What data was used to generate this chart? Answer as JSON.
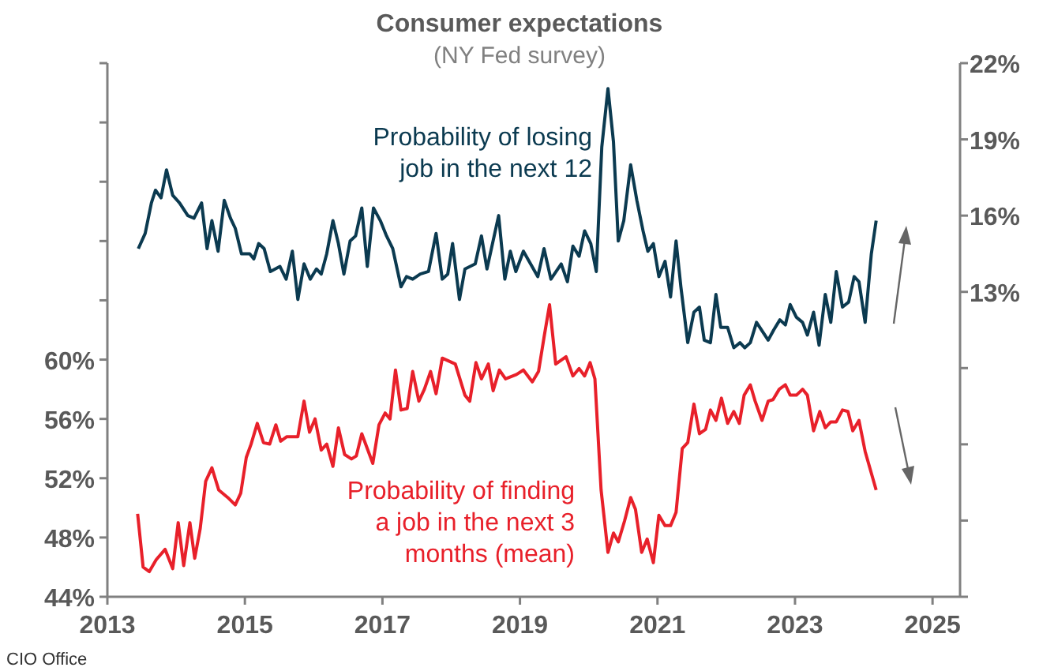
{
  "chart_data": {
    "type": "line",
    "title": "Consumer expectations",
    "subtitle": "(NY Fed survey)",
    "annotations": [
      "CIO Office"
    ],
    "xlim": [
      2013,
      2025.4
    ],
    "xticks": [
      2013,
      2015,
      2017,
      2019,
      2021,
      2023,
      2025
    ],
    "ylim": [
      44,
      80
    ],
    "yticks": [
      {
        "value": 44,
        "label": "44%"
      },
      {
        "value": 48,
        "label": "48%"
      },
      {
        "value": 52,
        "label": "52%"
      },
      {
        "value": 56,
        "label": "56%"
      },
      {
        "value": 60,
        "label": "60%"
      },
      {
        "value": 64,
        "label": null
      },
      {
        "value": 68,
        "label": null
      },
      {
        "value": 72,
        "label": null
      },
      {
        "value": 76,
        "label": null
      },
      {
        "value": 80,
        "label": null
      }
    ],
    "y2lim": [
      1,
      22
    ],
    "y2ticks": [
      {
        "value": 1,
        "label": null
      },
      {
        "value": 4,
        "label": null
      },
      {
        "value": 7,
        "label": null
      },
      {
        "value": 10,
        "label": null
      },
      {
        "value": 13,
        "label": "13%"
      },
      {
        "value": 16,
        "label": "16%"
      },
      {
        "value": 19,
        "label": "19%"
      },
      {
        "value": 22,
        "label": "22%"
      }
    ],
    "grid": false,
    "legend": false,
    "marker": "none",
    "line_style": "solid",
    "series": [
      {
        "name": "Probability of losing job in the next 12",
        "color": "#0b3a50",
        "axis": "y2",
        "x": [
          2013.45,
          2013.55,
          2013.64,
          2013.7,
          2013.78,
          2013.86,
          2013.95,
          2014.05,
          2014.17,
          2014.26,
          2014.37,
          2014.45,
          2014.52,
          2014.61,
          2014.7,
          2014.79,
          2014.86,
          2014.95,
          2015.07,
          2015.13,
          2015.2,
          2015.28,
          2015.37,
          2015.51,
          2015.6,
          2015.69,
          2015.77,
          2015.86,
          2015.95,
          2016.04,
          2016.11,
          2016.19,
          2016.28,
          2016.36,
          2016.44,
          2016.53,
          2016.61,
          2016.7,
          2016.78,
          2016.87,
          2016.97,
          2017.06,
          2017.15,
          2017.27,
          2017.35,
          2017.44,
          2017.55,
          2017.67,
          2017.78,
          2017.87,
          2017.95,
          2018.02,
          2018.12,
          2018.2,
          2018.35,
          2018.44,
          2018.52,
          2018.69,
          2018.78,
          2018.86,
          2018.94,
          2019.05,
          2019.26,
          2019.35,
          2019.45,
          2019.6,
          2019.69,
          2019.77,
          2019.86,
          2019.94,
          2020.03,
          2020.11,
          2020.19,
          2020.28,
          2020.36,
          2020.43,
          2020.51,
          2020.61,
          2020.7,
          2020.79,
          2020.86,
          2020.94,
          2021.02,
          2021.11,
          2021.19,
          2021.27,
          2021.34,
          2021.44,
          2021.53,
          2021.61,
          2021.68,
          2021.77,
          2021.85,
          2021.92,
          2022.02,
          2022.11,
          2022.2,
          2022.27,
          2022.35,
          2022.44,
          2022.61,
          2022.69,
          2022.78,
          2022.86,
          2022.93,
          2023.02,
          2023.11,
          2023.18,
          2023.27,
          2023.35,
          2023.44,
          2023.52,
          2023.6,
          2023.69,
          2023.78,
          2023.86,
          2023.93,
          2024.02,
          2024.11,
          2024.18
        ],
        "values": [
          14.7,
          15.3,
          16.5,
          17.0,
          16.7,
          17.8,
          16.8,
          16.5,
          16.0,
          15.9,
          16.5,
          14.7,
          15.8,
          14.6,
          16.6,
          15.9,
          15.5,
          14.5,
          14.5,
          14.3,
          14.9,
          14.7,
          13.8,
          14.0,
          13.5,
          14.6,
          12.7,
          14.1,
          13.5,
          13.9,
          13.7,
          14.5,
          15.8,
          14.9,
          13.7,
          15.0,
          15.2,
          16.3,
          14.0,
          16.3,
          15.8,
          15.2,
          14.7,
          13.2,
          13.6,
          13.5,
          13.7,
          13.8,
          15.3,
          13.5,
          13.7,
          14.9,
          12.7,
          13.9,
          14.1,
          15.2,
          13.9,
          16.0,
          13.5,
          14.6,
          13.8,
          14.6,
          13.6,
          14.7,
          13.5,
          14.1,
          13.4,
          14.8,
          14.4,
          15.4,
          14.9,
          13.8,
          18.7,
          21.0,
          18.9,
          15.0,
          15.8,
          18.0,
          16.6,
          15.4,
          14.6,
          14.9,
          13.6,
          14.2,
          12.8,
          15.0,
          13.2,
          11.0,
          12.2,
          12.4,
          11.1,
          11.0,
          12.9,
          11.6,
          11.6,
          10.8,
          11.0,
          10.8,
          11.0,
          11.8,
          11.1,
          11.5,
          11.9,
          11.7,
          12.5,
          12.0,
          11.8,
          11.3,
          12.2,
          10.9,
          12.9,
          11.8,
          13.8,
          12.4,
          12.6,
          13.6,
          13.4,
          11.8,
          14.5,
          15.8
        ]
      },
      {
        "name": "Probability of finding a job in the next 3 months (mean)",
        "color": "#e8202a",
        "x": [
          2013.44,
          2013.52,
          2013.61,
          2013.71,
          2013.84,
          2013.95,
          2014.03,
          2014.11,
          2014.2,
          2014.27,
          2014.35,
          2014.43,
          2014.52,
          2014.62,
          2014.75,
          2014.86,
          2014.94,
          2015.02,
          2015.09,
          2015.18,
          2015.27,
          2015.36,
          2015.45,
          2015.52,
          2015.61,
          2015.77,
          2015.86,
          2015.94,
          2016.02,
          2016.11,
          2016.19,
          2016.28,
          2016.36,
          2016.45,
          2016.55,
          2016.62,
          2016.7,
          2016.86,
          2016.95,
          2017.04,
          2017.11,
          2017.19,
          2017.27,
          2017.36,
          2017.44,
          2017.53,
          2017.61,
          2017.7,
          2017.78,
          2017.87,
          2018.06,
          2018.2,
          2018.27,
          2018.36,
          2018.44,
          2018.54,
          2018.61,
          2018.7,
          2018.79,
          2018.95,
          2019.05,
          2019.18,
          2019.27,
          2019.35,
          2019.43,
          2019.52,
          2019.67,
          2019.77,
          2019.86,
          2019.94,
          2020.02,
          2020.09,
          2020.18,
          2020.28,
          2020.36,
          2020.43,
          2020.52,
          2020.61,
          2020.68,
          2020.77,
          2020.85,
          2020.94,
          2021.02,
          2021.11,
          2021.19,
          2021.27,
          2021.36,
          2021.44,
          2021.53,
          2021.61,
          2021.7,
          2021.77,
          2021.85,
          2021.93,
          2022.02,
          2022.11,
          2022.19,
          2022.26,
          2022.35,
          2022.42,
          2022.52,
          2022.61,
          2022.68,
          2022.77,
          2022.86,
          2022.93,
          2023.02,
          2023.11,
          2023.18,
          2023.27,
          2023.36,
          2023.44,
          2023.52,
          2023.6,
          2023.69,
          2023.77,
          2023.84,
          2023.93,
          2024.02,
          2024.18
        ],
        "values": [
          49.6,
          46.0,
          45.7,
          46.5,
          47.2,
          45.9,
          49.0,
          46.1,
          49.0,
          46.6,
          48.6,
          51.8,
          52.7,
          51.2,
          50.7,
          50.2,
          51.0,
          53.4,
          54.3,
          55.7,
          54.4,
          54.3,
          55.6,
          54.5,
          54.8,
          54.8,
          57.2,
          55.1,
          56.0,
          53.9,
          54.3,
          52.8,
          55.4,
          53.6,
          53.3,
          53.5,
          55.0,
          53.0,
          55.6,
          56.4,
          56.0,
          59.3,
          56.6,
          56.7,
          59.2,
          57.2,
          58.0,
          59.2,
          57.7,
          60.1,
          59.7,
          57.6,
          57.2,
          59.8,
          58.7,
          59.7,
          57.9,
          59.3,
          58.7,
          59.0,
          59.3,
          58.5,
          59.2,
          61.5,
          63.7,
          59.7,
          60.2,
          58.9,
          59.4,
          58.9,
          59.8,
          58.7,
          51.2,
          47.0,
          48.3,
          47.7,
          49.1,
          50.7,
          49.9,
          47.0,
          47.9,
          46.3,
          49.5,
          48.8,
          48.8,
          49.7,
          54.0,
          54.4,
          57.0,
          55.0,
          55.3,
          56.6,
          55.9,
          57.4,
          55.7,
          56.5,
          55.7,
          57.6,
          58.3,
          57.2,
          55.9,
          57.2,
          57.3,
          58.0,
          58.3,
          57.6,
          57.6,
          58.0,
          57.6,
          55.2,
          56.5,
          55.4,
          55.8,
          55.8,
          56.6,
          56.5,
          55.2,
          55.9,
          53.8,
          51.2
        ]
      }
    ]
  }
}
